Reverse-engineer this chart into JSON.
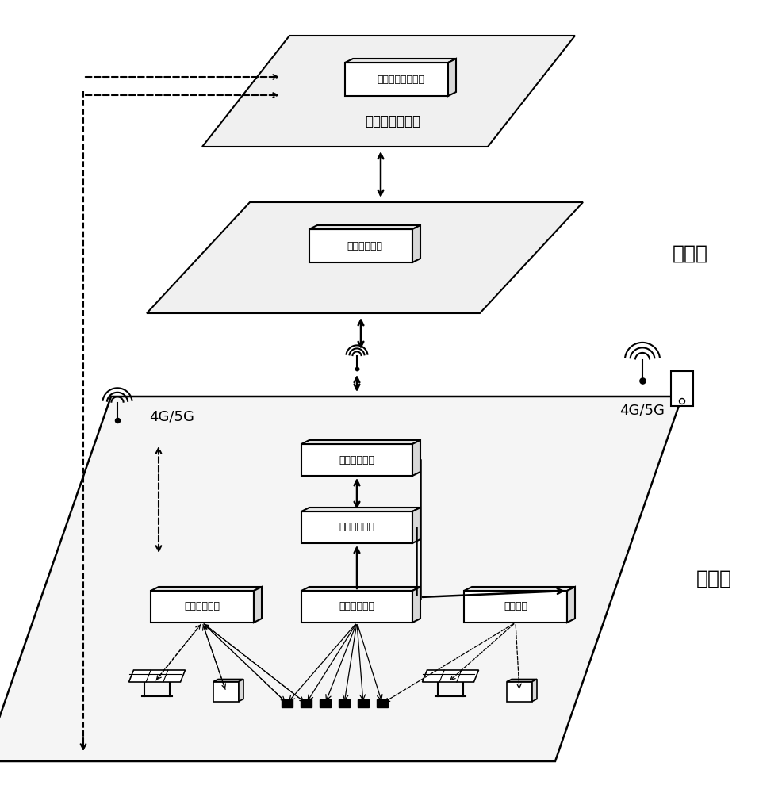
{
  "bg_color": "#ffffff",
  "labels": {
    "ops_center": "运维中心控制室",
    "display_module": "显示操作计算模块",
    "cloud_compute": "云端计算模块",
    "data_transfer": "数据传输模块",
    "edge_compute": "边端计算模块",
    "data_monitor": "数据监测模块",
    "monitor_interact": "监控互动模块",
    "control_module": "控制模块",
    "near_side": "近侧端",
    "far_side": "远侧端",
    "4g5g": "4G/5G"
  }
}
